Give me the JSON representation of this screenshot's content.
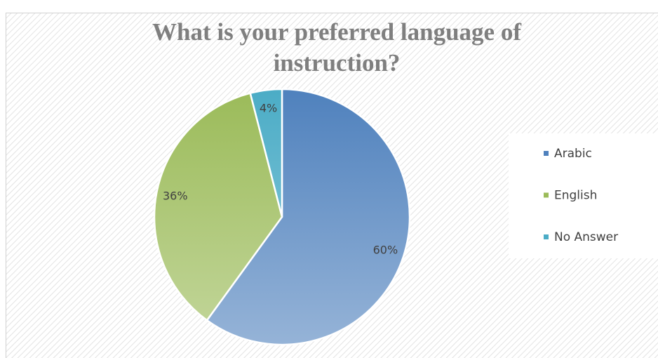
{
  "chart_data": {
    "type": "pie",
    "title": "What is your preferred language of instruction?",
    "categories": [
      "Arabic",
      "English",
      "No Answer"
    ],
    "values": [
      60,
      36,
      4
    ],
    "value_labels": [
      "60%",
      "36%",
      "4%"
    ],
    "colors": [
      "#4f81bd",
      "#9bbb59",
      "#4bacc6"
    ],
    "legend": "right"
  }
}
